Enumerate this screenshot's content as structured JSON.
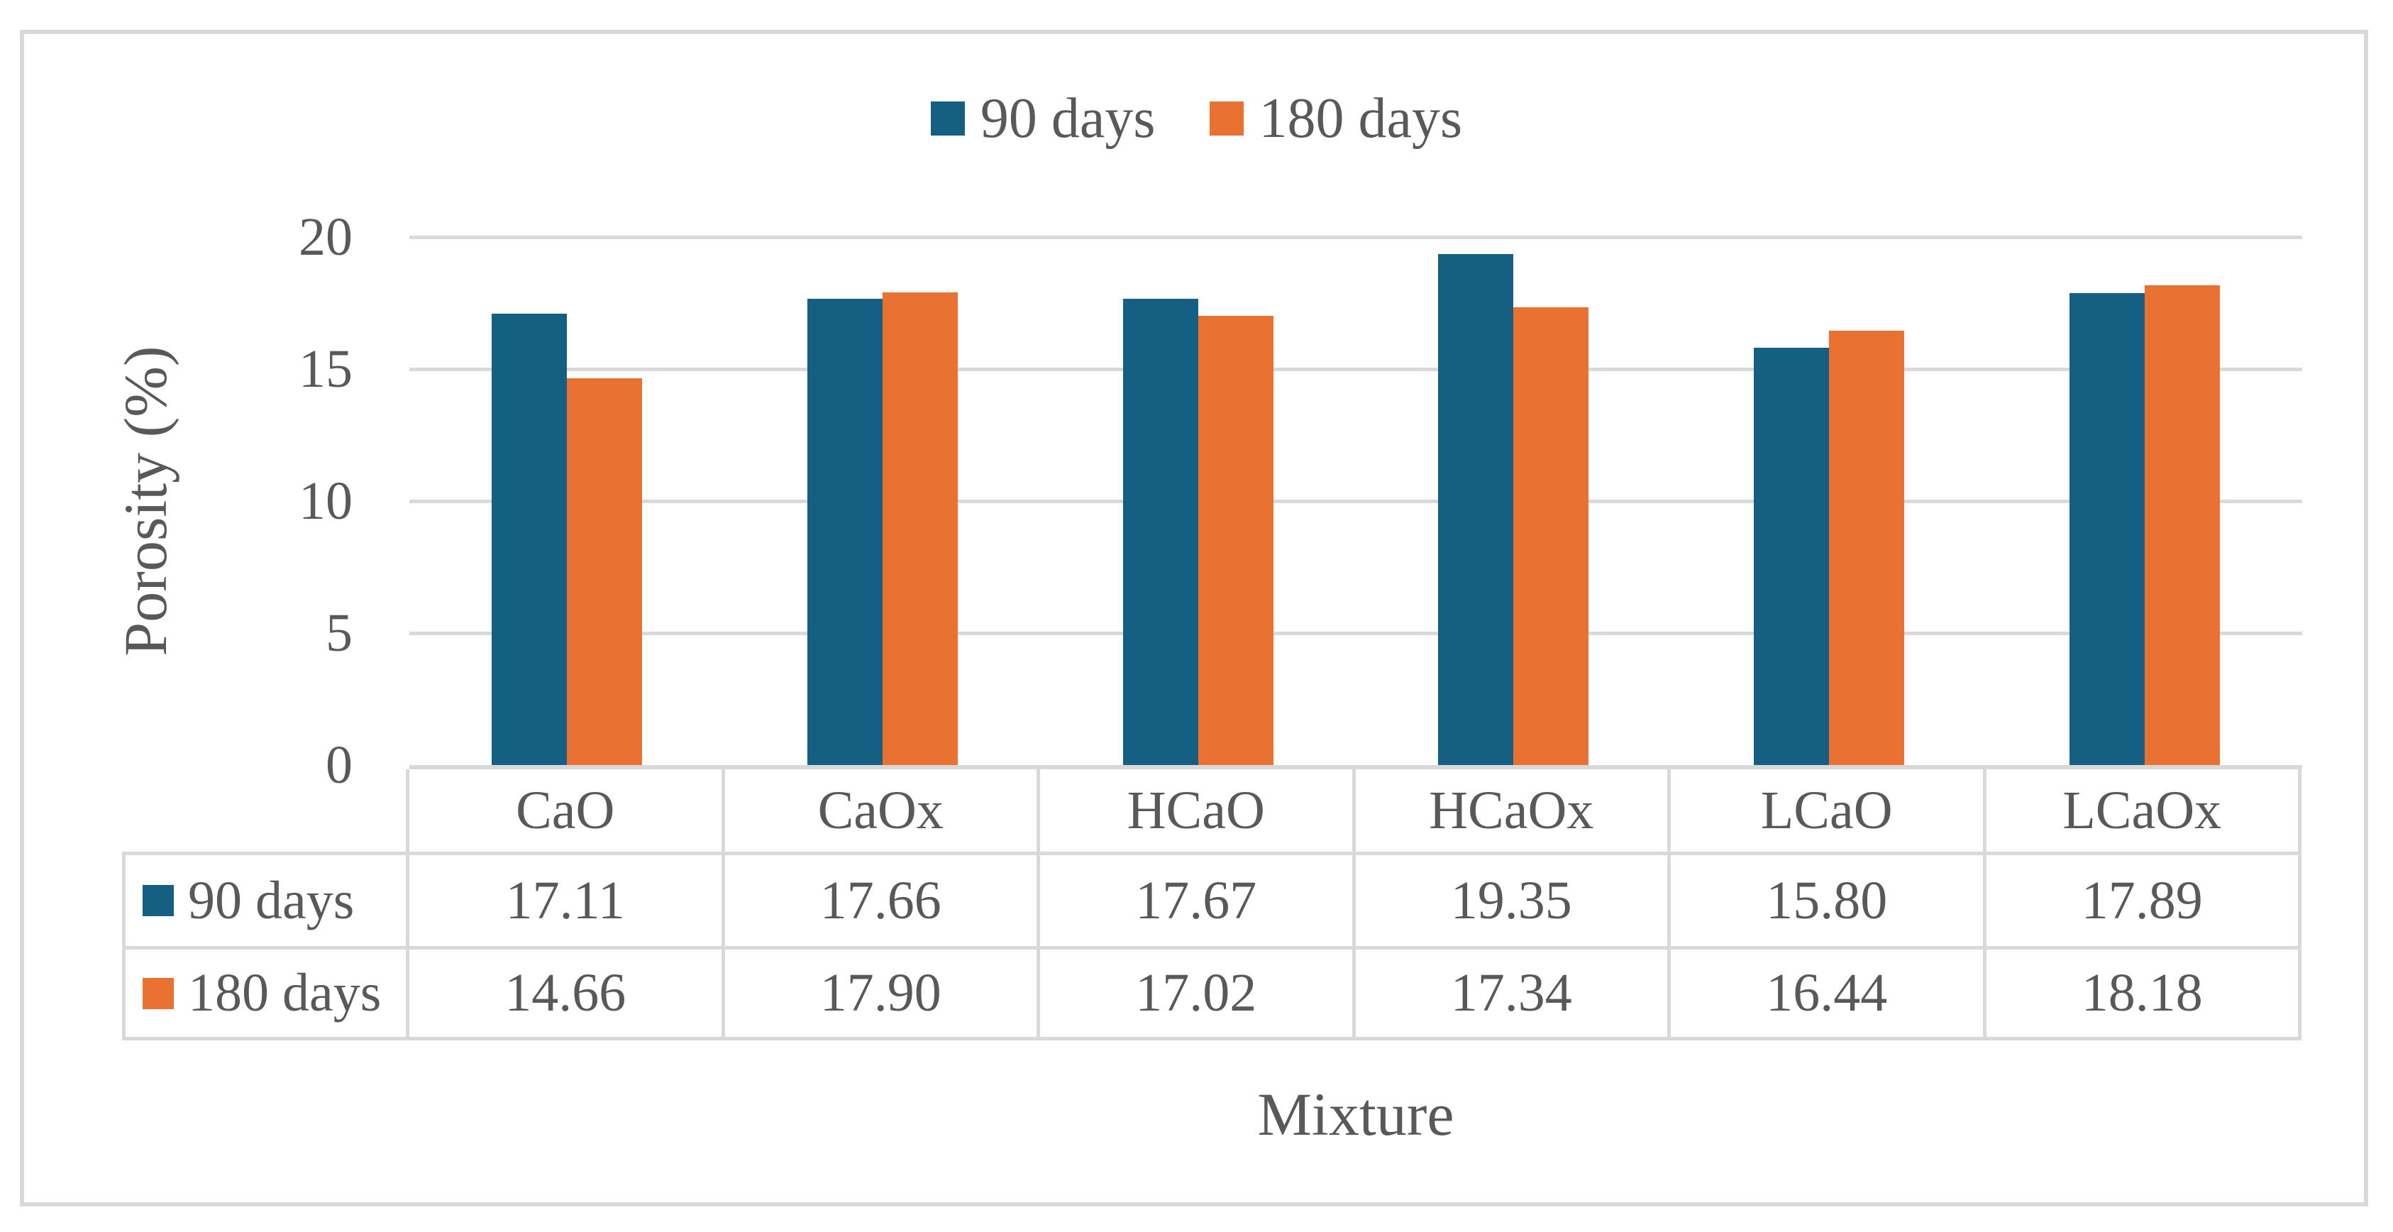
{
  "chart_data": {
    "type": "bar",
    "title": "",
    "categories": [
      "CaO",
      "CaOx",
      "HCaO",
      "HCaOx",
      "LCaO",
      "LCaOx"
    ],
    "series": [
      {
        "name": "90 days",
        "color": "#156082",
        "values": [
          17.11,
          17.66,
          17.67,
          19.35,
          15.8,
          17.89
        ]
      },
      {
        "name": "180 days",
        "color": "#E97132",
        "values": [
          14.66,
          17.9,
          17.02,
          17.34,
          16.44,
          18.18
        ]
      }
    ],
    "xlabel": "Mixture",
    "ylabel": "Porosity (%)",
    "ylim": [
      0,
      20
    ],
    "yticks": [
      0,
      5,
      10,
      15,
      20
    ],
    "grid": true,
    "legend_position": "top",
    "data_table": true,
    "value_decimals": 2
  },
  "colors": {
    "series_90_days": "#156082",
    "series_180_days": "#E97132",
    "text": "#595959",
    "gridline": "#d9d9d9",
    "frame_border": "#d9d9d9",
    "background": "#ffffff"
  }
}
